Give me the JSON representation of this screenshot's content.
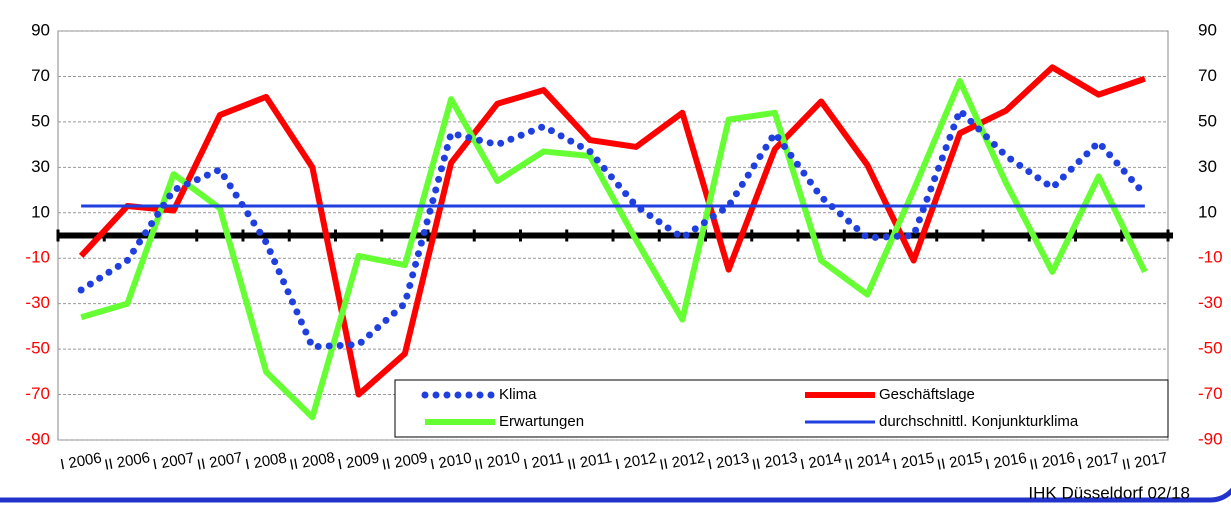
{
  "chart_data": {
    "type": "line",
    "categories": [
      "I 2006",
      "II 2006",
      "I 2007",
      "II 2007",
      "I 2008",
      "II 2008",
      "I 2009",
      "II 2009",
      "I 2010",
      "II 2010",
      "I 2011",
      "II 2011",
      "I 2012",
      "II 2012",
      "I 2013",
      "II 2013",
      "I 2014",
      "II 2014",
      "I 2015",
      "II 2015",
      "I 2016",
      "II 2016",
      "I 2017",
      "II 2017"
    ],
    "series": [
      {
        "name": "Geschäftslage",
        "color": "#ff0000",
        "style": "solid",
        "values": [
          -9,
          13,
          11,
          53,
          61,
          30,
          -70,
          -52,
          32,
          58,
          64,
          42,
          39,
          54,
          -15,
          38,
          59,
          31,
          -11,
          45,
          55,
          74,
          62,
          69
        ]
      },
      {
        "name": "Erwartungen",
        "color": "#66ff33",
        "style": "solid",
        "values": [
          -36,
          -30,
          27,
          12,
          -60,
          -80,
          -9,
          -13,
          60,
          24,
          37,
          35,
          -2,
          -37,
          51,
          54,
          -11,
          -26,
          20,
          68,
          23,
          -16,
          26,
          -16
        ]
      },
      {
        "name": "Klima",
        "color": "#1f3fdf",
        "style": "dotted",
        "values": [
          -24,
          -11,
          20,
          29,
          -3,
          -49,
          -48,
          -30,
          45,
          40,
          48,
          37,
          13,
          -1,
          13,
          45,
          17,
          -1,
          0,
          55,
          35,
          21,
          41,
          18
        ]
      },
      {
        "name": "durchschnittl. Konjunkturklima",
        "color": "#1f3fdf",
        "style": "thin",
        "values": [
          13,
          13,
          13,
          13,
          13,
          13,
          13,
          13,
          13,
          13,
          13,
          13,
          13,
          13,
          13,
          13,
          13,
          13,
          13,
          13,
          13,
          13,
          13,
          13
        ]
      }
    ],
    "ylim": [
      -90,
      90
    ],
    "yticks": [
      -90,
      -70,
      -50,
      -30,
      -10,
      10,
      30,
      50,
      70,
      90
    ],
    "negative_tick_color": "#ff0000",
    "grid": true,
    "footer": "IHK Düsseldorf 02/18"
  }
}
